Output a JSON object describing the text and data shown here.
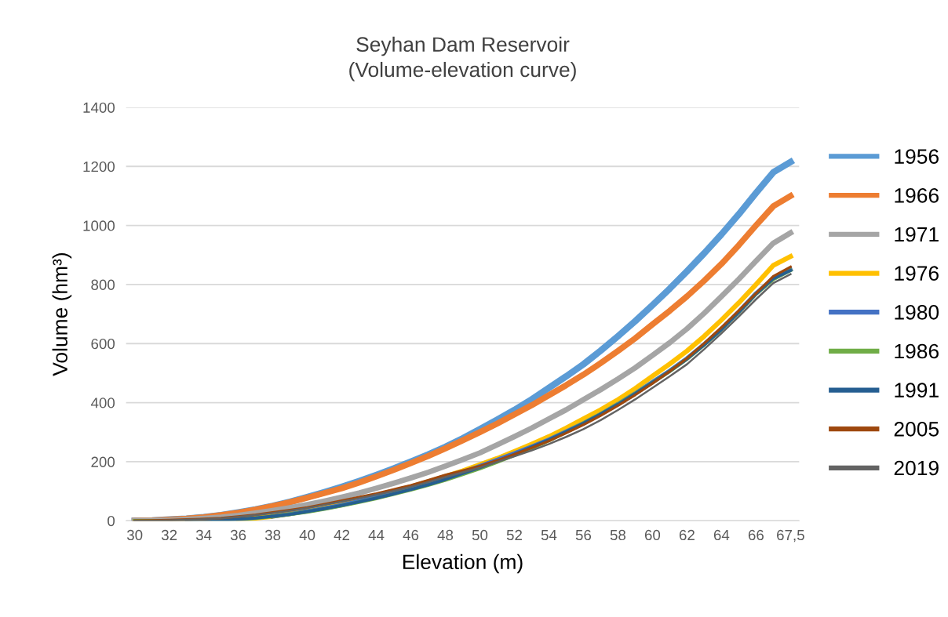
{
  "chart_data": {
    "type": "line",
    "title": "Seyhan Dam Reservoir\n(Volume-elevation curve)",
    "xlabel": "Elevation (m)",
    "ylabel": "Volume (hm³)",
    "categories": [
      "30",
      null,
      "32",
      null,
      "34",
      null,
      "36",
      null,
      "38",
      null,
      "40",
      null,
      "42",
      null,
      "44",
      null,
      "46",
      null,
      "48",
      null,
      "50",
      null,
      "52",
      null,
      "54",
      null,
      "56",
      null,
      "58",
      null,
      "60",
      null,
      "62",
      null,
      "64",
      null,
      "66",
      null,
      "67,5"
    ],
    "ylim": [
      0,
      1400
    ],
    "yticks": [
      0,
      200,
      400,
      600,
      800,
      1000,
      1200,
      1400
    ],
    "grid": "y",
    "legend": "right",
    "marker": "none",
    "line_style": "solid",
    "series": [
      {
        "name": "1956",
        "color": "#5b9bd5",
        "values": [
          0,
          1,
          4,
          7,
          12,
          19,
          28,
          38,
          50,
          64,
          80,
          97,
          115,
          134,
          155,
          177,
          200,
          224,
          250,
          279,
          310,
          342,
          375,
          411,
          450,
          489,
          530,
          576,
          625,
          676,
          730,
          786,
          845,
          906,
          970,
          1038,
          1110,
          1180,
          1215
        ]
      },
      {
        "name": "1966",
        "color": "#ed7d31",
        "values": [
          0,
          1,
          4,
          7,
          12,
          19,
          27,
          38,
          50,
          63,
          78,
          94,
          110,
          129,
          150,
          172,
          195,
          219,
          245,
          272,
          300,
          329,
          360,
          391,
          425,
          459,
          495,
          534,
          575,
          618,
          665,
          711,
          760,
          813,
          870,
          933,
          1000,
          1065,
          1100
        ]
      },
      {
        "name": "1971",
        "color": "#a5a5a5",
        "values": [
          0,
          1,
          2,
          5,
          8,
          12,
          18,
          26,
          35,
          44,
          55,
          67,
          80,
          94,
          110,
          127,
          145,
          164,
          185,
          207,
          230,
          257,
          285,
          314,
          345,
          376,
          410,
          444,
          480,
          518,
          560,
          603,
          650,
          703,
          760,
          818,
          880,
          940,
          975
        ]
      },
      {
        "name": "1976",
        "color": "#ffc000",
        "values": [
          null,
          null,
          null,
          null,
          null,
          null,
          4,
          9,
          15,
          24,
          35,
          46,
          58,
          71,
          85,
          100,
          115,
          132,
          150,
          169,
          190,
          211,
          235,
          259,
          285,
          314,
          345,
          376,
          410,
          448,
          490,
          531,
          575,
          625,
          680,
          738,
          800,
          865,
          895
        ]
      },
      {
        "name": "1980",
        "color": "#4472c4",
        "values": [
          null,
          null,
          null,
          null,
          null,
          null,
          null,
          null,
          15,
          23,
          32,
          42,
          53,
          66,
          80,
          94,
          110,
          127,
          145,
          164,
          185,
          206,
          228,
          251,
          275,
          302,
          330,
          361,
          395,
          431,
          470,
          508,
          550,
          598,
          650,
          708,
          770,
          820,
          850
        ]
      },
      {
        "name": "1986",
        "color": "#70ad47",
        "values": [
          0,
          0,
          0,
          0,
          1,
          2,
          5,
          9,
          15,
          22,
          30,
          40,
          51,
          63,
          76,
          90,
          105,
          121,
          138,
          157,
          177,
          199,
          222,
          246,
          272,
          300,
          330,
          361,
          395,
          431,
          468,
          506,
          548,
          596,
          648,
          706,
          768,
          818,
          848
        ]
      },
      {
        "name": "1991",
        "color": "#255e91",
        "values": [
          null,
          null,
          null,
          0,
          1,
          2,
          5,
          9,
          15,
          22,
          31,
          41,
          52,
          64,
          77,
          91,
          106,
          122,
          140,
          160,
          180,
          202,
          225,
          249,
          274,
          301,
          330,
          361,
          394,
          430,
          468,
          507,
          548,
          596,
          648,
          706,
          768,
          820,
          848
        ]
      },
      {
        "name": "2005",
        "color": "#9e480e",
        "values": [
          0,
          1,
          2,
          4,
          6,
          9,
          14,
          20,
          28,
          36,
          45,
          56,
          68,
          80,
          92,
          106,
          120,
          137,
          155,
          170,
          185,
          204,
          225,
          247,
          270,
          297,
          325,
          356,
          390,
          426,
          465,
          506,
          550,
          601,
          655,
          712,
          770,
          828,
          860
        ]
      },
      {
        "name": "2019",
        "color": "#636363",
        "values": [
          0,
          0,
          1,
          3,
          5,
          8,
          13,
          19,
          26,
          34,
          43,
          54,
          65,
          76,
          88,
          101,
          115,
          131,
          148,
          164,
          180,
          199,
          218,
          238,
          260,
          284,
          310,
          341,
          375,
          411,
          450,
          489,
          530,
          581,
          635,
          691,
          750,
          805,
          835
        ]
      }
    ]
  }
}
